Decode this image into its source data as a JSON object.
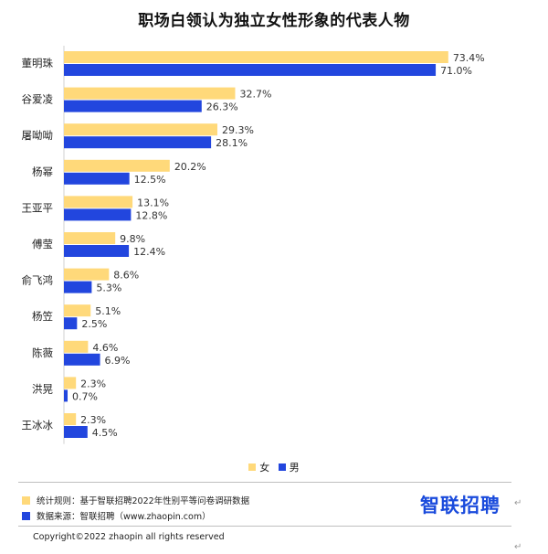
{
  "title": "职场白领认为独立女性形象的代表人物",
  "colors": {
    "female": "#FFD97A",
    "male": "#2246DE"
  },
  "chart_data": {
    "type": "bar",
    "orientation": "horizontal",
    "categories": [
      "董明珠",
      "谷爱凌",
      "屠呦呦",
      "杨幂",
      "王亚平",
      "傅莹",
      "俞飞鸿",
      "杨笠",
      "陈薇",
      "洪晃",
      "王冰冰"
    ],
    "series": [
      {
        "name": "女",
        "values": [
          73.4,
          32.7,
          29.3,
          20.2,
          13.1,
          9.8,
          8.6,
          5.1,
          4.6,
          2.3,
          2.3
        ]
      },
      {
        "name": "男",
        "values": [
          71.0,
          26.3,
          28.1,
          12.5,
          12.8,
          12.4,
          5.3,
          2.5,
          6.9,
          0.7,
          4.5
        ]
      }
    ],
    "value_suffix": "%",
    "xlim": [
      0,
      75
    ],
    "grid": false,
    "legend": "bottom-center"
  },
  "legend": {
    "female_label": "女",
    "male_label": "男"
  },
  "footer": {
    "note1": "统计规则：基于智联招聘2022年性别平等问卷调研数据",
    "note2": "数据来源：智联招聘（www.zhaopin.com）",
    "logo": "智联招聘",
    "copyright": "Copyright©2022 zhaopin all rights reserved",
    "mark": "↵"
  }
}
